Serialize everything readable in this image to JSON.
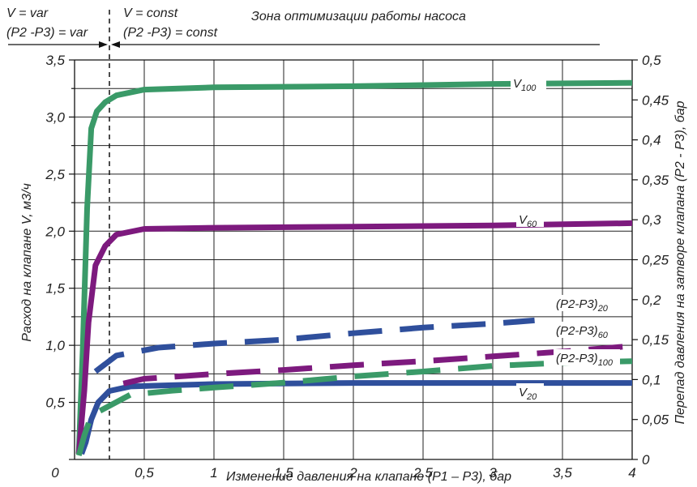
{
  "chart_data": {
    "type": "line",
    "title": "",
    "xlabel": "Изменение давления на клапане (P1 – P3), бар",
    "ylabel": "Расход на клапане V, м3/ч",
    "y2label": "Перепад давления на затворе клапана (P2 - P3), бар",
    "xlim": [
      0,
      4
    ],
    "ylim": [
      0,
      3.5
    ],
    "y2lim": [
      0,
      0.5
    ],
    "grid": true,
    "x_ticks": [
      "0",
      "0,5",
      "1",
      "1,5",
      "2",
      "2,5",
      "3",
      "3,5",
      "4"
    ],
    "y_ticks": [
      "0",
      "0,5",
      "1,0",
      "1,5",
      "2,0",
      "2,5",
      "3,0",
      "3,5"
    ],
    "y2_ticks": [
      "0",
      "0,05",
      "0,1",
      "0,15",
      "0,2",
      "0,25",
      "0,3",
      "0,35",
      "0,4",
      "0,45",
      "0,5"
    ],
    "divider_x": 0.25,
    "annotations": {
      "left_top": "V = var",
      "left_bottom": "(P2 -P3) = var",
      "right_top": "V = const",
      "right_bottom": "(P2 -P3) = const",
      "zone": "Зона оптимизации работы насоса"
    },
    "series": [
      {
        "name": "V100",
        "label_main": "V",
        "label_sub": "100",
        "axis": "left",
        "style": "solid",
        "color": "#3a9a68",
        "points": [
          [
            0.03,
            0.05
          ],
          [
            0.06,
            1.0
          ],
          [
            0.09,
            2.2
          ],
          [
            0.12,
            2.9
          ],
          [
            0.16,
            3.05
          ],
          [
            0.22,
            3.13
          ],
          [
            0.3,
            3.19
          ],
          [
            0.5,
            3.24
          ],
          [
            1.0,
            3.26
          ],
          [
            2.0,
            3.27
          ],
          [
            3.0,
            3.29
          ],
          [
            4.0,
            3.3
          ]
        ]
      },
      {
        "name": "V60",
        "label_main": "V",
        "label_sub": "60",
        "axis": "left",
        "style": "solid",
        "color": "#7d1a7e",
        "points": [
          [
            0.03,
            0.05
          ],
          [
            0.07,
            0.6
          ],
          [
            0.1,
            1.2
          ],
          [
            0.15,
            1.7
          ],
          [
            0.22,
            1.87
          ],
          [
            0.3,
            1.97
          ],
          [
            0.5,
            2.02
          ],
          [
            1.0,
            2.03
          ],
          [
            2.0,
            2.04
          ],
          [
            3.0,
            2.05
          ],
          [
            4.0,
            2.07
          ]
        ]
      },
      {
        "name": "V20",
        "label_main": "V",
        "label_sub": "20",
        "axis": "left",
        "style": "solid",
        "color": "#2f4f9c",
        "points": [
          [
            0.05,
            0.05
          ],
          [
            0.08,
            0.15
          ],
          [
            0.12,
            0.35
          ],
          [
            0.17,
            0.5
          ],
          [
            0.25,
            0.6
          ],
          [
            0.4,
            0.64
          ],
          [
            0.7,
            0.65
          ],
          [
            1.0,
            0.66
          ],
          [
            2.0,
            0.67
          ],
          [
            3.0,
            0.67
          ],
          [
            4.0,
            0.67
          ]
        ]
      },
      {
        "name": "(P2-P3)20",
        "label_main": "(P2-P3)",
        "label_sub": "20",
        "axis": "right",
        "style": "dashed",
        "color": "#2f4f9c",
        "points": [
          [
            0.15,
            0.11
          ],
          [
            0.3,
            0.13
          ],
          [
            0.6,
            0.14
          ],
          [
            1.0,
            0.145
          ],
          [
            1.5,
            0.15
          ],
          [
            2.0,
            0.158
          ],
          [
            2.5,
            0.165
          ],
          [
            3.0,
            0.17
          ],
          [
            3.3,
            0.174
          ]
        ]
      },
      {
        "name": "(P2-P3)60",
        "label_main": "(P2-P3)",
        "label_sub": "60",
        "axis": "right",
        "style": "dashed",
        "color": "#7d1a7e",
        "points": [
          [
            0.35,
            0.095
          ],
          [
            0.5,
            0.101
          ],
          [
            1.0,
            0.107
          ],
          [
            1.5,
            0.112
          ],
          [
            2.0,
            0.118
          ],
          [
            2.5,
            0.123
          ],
          [
            3.0,
            0.129
          ],
          [
            3.5,
            0.135
          ],
          [
            4.0,
            0.142
          ]
        ]
      },
      {
        "name": "(P2-P3)100",
        "label_main": "(P2-P3)",
        "label_sub": "100",
        "axis": "right",
        "style": "dashed",
        "color": "#3a9a68",
        "points": [
          [
            0.03,
            0.005
          ],
          [
            0.07,
            0.03
          ],
          [
            0.12,
            0.055
          ],
          [
            0.4,
            0.081
          ],
          [
            0.7,
            0.086
          ],
          [
            1.0,
            0.09
          ],
          [
            1.5,
            0.096
          ],
          [
            2.0,
            0.104
          ],
          [
            2.5,
            0.11
          ],
          [
            3.0,
            0.117
          ],
          [
            3.5,
            0.121
          ],
          [
            4.0,
            0.123
          ]
        ]
      }
    ]
  }
}
